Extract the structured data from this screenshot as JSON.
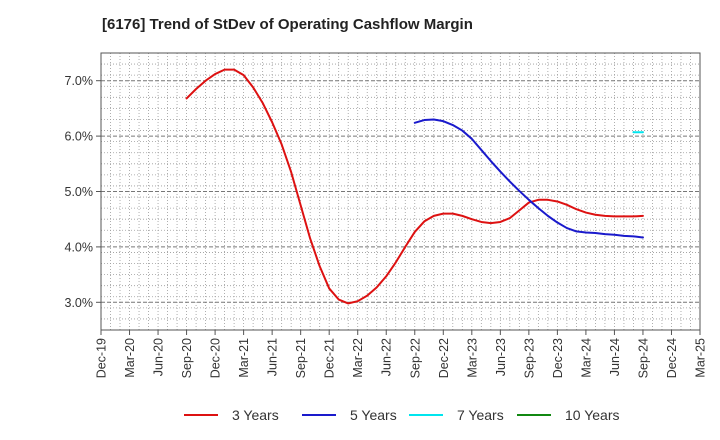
{
  "chart_data": {
    "type": "line",
    "title": "[6176]  Trend of StDev of Operating Cashflow Margin",
    "xlabel": "",
    "ylabel": "",
    "x_ticks": [
      "Dec-19",
      "Mar-20",
      "Jun-20",
      "Sep-20",
      "Dec-20",
      "Mar-21",
      "Jun-21",
      "Sep-21",
      "Dec-21",
      "Mar-22",
      "Jun-22",
      "Sep-22",
      "Dec-22",
      "Mar-23",
      "Jun-23",
      "Sep-23",
      "Dec-23",
      "Mar-24",
      "Jun-24",
      "Sep-24",
      "Dec-24",
      "Mar-25"
    ],
    "y_ticks": [
      "3.0%",
      "4.0%",
      "5.0%",
      "6.0%",
      "7.0%"
    ],
    "ylim": [
      2.5,
      7.5
    ],
    "y_unit": "%",
    "grid": true,
    "legend_position": "bottom",
    "series": [
      {
        "name": "3 Years",
        "color": "#dd1111",
        "x": [
          "Sep-20",
          "Oct-20",
          "Nov-20",
          "Dec-20",
          "Jan-21",
          "Feb-21",
          "Mar-21",
          "Apr-21",
          "May-21",
          "Jun-21",
          "Jul-21",
          "Aug-21",
          "Sep-21",
          "Oct-21",
          "Nov-21",
          "Dec-21",
          "Jan-22",
          "Feb-22",
          "Mar-22",
          "Apr-22",
          "May-22",
          "Jun-22",
          "Jul-22",
          "Aug-22",
          "Sep-22",
          "Oct-22",
          "Nov-22",
          "Dec-22",
          "Jan-23",
          "Feb-23",
          "Mar-23",
          "Apr-23",
          "May-23",
          "Jun-23",
          "Jul-23",
          "Aug-23",
          "Sep-23",
          "Oct-23",
          "Nov-23",
          "Dec-23",
          "Jan-24",
          "Feb-24",
          "Mar-24",
          "Apr-24",
          "May-24",
          "Jun-24",
          "Jul-24",
          "Aug-24",
          "Sep-24"
        ],
        "values": [
          6.68,
          6.85,
          7.0,
          7.12,
          7.2,
          7.2,
          7.1,
          6.88,
          6.6,
          6.25,
          5.85,
          5.35,
          4.75,
          4.15,
          3.65,
          3.25,
          3.05,
          2.98,
          3.02,
          3.12,
          3.27,
          3.47,
          3.72,
          4.0,
          4.27,
          4.46,
          4.56,
          4.6,
          4.6,
          4.56,
          4.5,
          4.45,
          4.43,
          4.45,
          4.52,
          4.66,
          4.8,
          4.85,
          4.85,
          4.82,
          4.76,
          4.68,
          4.62,
          4.58,
          4.56,
          4.55,
          4.55,
          4.55,
          4.56
        ]
      },
      {
        "name": "5 Years",
        "color": "#1a1acc",
        "x": [
          "Sep-22",
          "Oct-22",
          "Nov-22",
          "Dec-22",
          "Jan-23",
          "Feb-23",
          "Mar-23",
          "Apr-23",
          "May-23",
          "Jun-23",
          "Jul-23",
          "Aug-23",
          "Sep-23",
          "Oct-23",
          "Nov-23",
          "Dec-23",
          "Jan-24",
          "Feb-24",
          "Mar-24",
          "Apr-24",
          "May-24",
          "Jun-24",
          "Jul-24",
          "Aug-24",
          "Sep-24"
        ],
        "values": [
          6.24,
          6.29,
          6.3,
          6.27,
          6.2,
          6.1,
          5.95,
          5.75,
          5.55,
          5.36,
          5.18,
          5.01,
          4.85,
          4.7,
          4.56,
          4.44,
          4.34,
          4.28,
          4.26,
          4.25,
          4.23,
          4.22,
          4.2,
          4.19,
          4.17
        ]
      },
      {
        "name": "7 Years",
        "color": "#00e5ee",
        "x": [
          "Aug-24",
          "Sep-24"
        ],
        "values": [
          6.07,
          6.07
        ]
      },
      {
        "name": "10 Years",
        "color": "#118811",
        "x": [],
        "values": []
      }
    ]
  }
}
